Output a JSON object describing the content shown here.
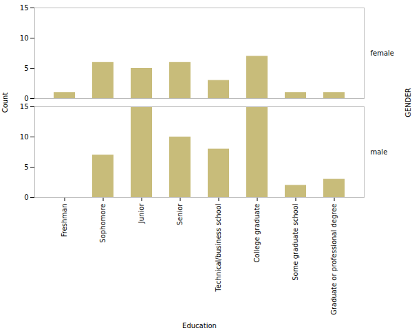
{
  "chart_data": {
    "type": "bar",
    "categories": [
      "Freshman",
      "Sophomore",
      "Junior",
      "Senior",
      "Technical/business school",
      "College graduate",
      "Some graduate school",
      "Graduate or professional degree"
    ],
    "series": [
      {
        "name": "female",
        "values": [
          1,
          6,
          5,
          6,
          3,
          7,
          1,
          1
        ]
      },
      {
        "name": "male",
        "values": [
          0,
          7,
          15,
          10,
          8,
          15,
          2,
          3
        ]
      }
    ],
    "color": "#c8bc7a",
    "xlabel": "Education",
    "ylabel": "Count",
    "facet_label": "GENDER",
    "ylim": [
      0,
      15
    ],
    "yticks": [
      0,
      5,
      10,
      15
    ],
    "grid": false
  }
}
